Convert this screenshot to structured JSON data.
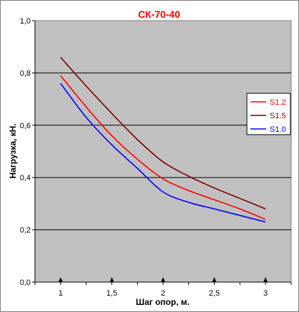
{
  "chart_data": {
    "type": "line",
    "title": "СК-70-40",
    "xlabel": "Шаг опор, м.",
    "ylabel": "Нагрузка, кН.",
    "xlim": [
      0.75,
      3.25
    ],
    "ylim": [
      0,
      1
    ],
    "x_ticks": [
      1,
      1.5,
      2,
      2.5,
      3
    ],
    "x_tick_labels": [
      "1",
      "1,5",
      "2",
      "2,5",
      "3"
    ],
    "y_ticks": [
      0,
      0.2,
      0.4,
      0.6,
      0.8,
      1.0
    ],
    "y_tick_labels": [
      "0,0",
      "0,2",
      "0,4",
      "0,6",
      "0,8",
      "1,0"
    ],
    "grid": "horizontal",
    "legend_position": "right",
    "colors": {
      "plot_background": "#c0c0c0",
      "title": "#ff0000"
    },
    "series": [
      {
        "name": "S1.2",
        "color": "#ff0000",
        "x": [
          1,
          1.25,
          1.5,
          1.75,
          2,
          2.25,
          2.5,
          2.75,
          3
        ],
        "y": [
          0.79,
          0.67,
          0.56,
          0.47,
          0.395,
          0.35,
          0.315,
          0.28,
          0.24
        ]
      },
      {
        "name": "S1.5",
        "color": "#800000",
        "x": [
          1,
          1.25,
          1.5,
          1.75,
          2,
          2.25,
          2.5,
          2.75,
          3
        ],
        "y": [
          0.86,
          0.75,
          0.645,
          0.545,
          0.46,
          0.405,
          0.36,
          0.32,
          0.28
        ]
      },
      {
        "name": "S1.0",
        "color": "#0000ff",
        "x": [
          1,
          1.25,
          1.5,
          1.75,
          2,
          2.25,
          2.5,
          2.75,
          3
        ],
        "y": [
          0.76,
          0.63,
          0.525,
          0.435,
          0.345,
          0.305,
          0.28,
          0.255,
          0.23
        ]
      }
    ]
  }
}
